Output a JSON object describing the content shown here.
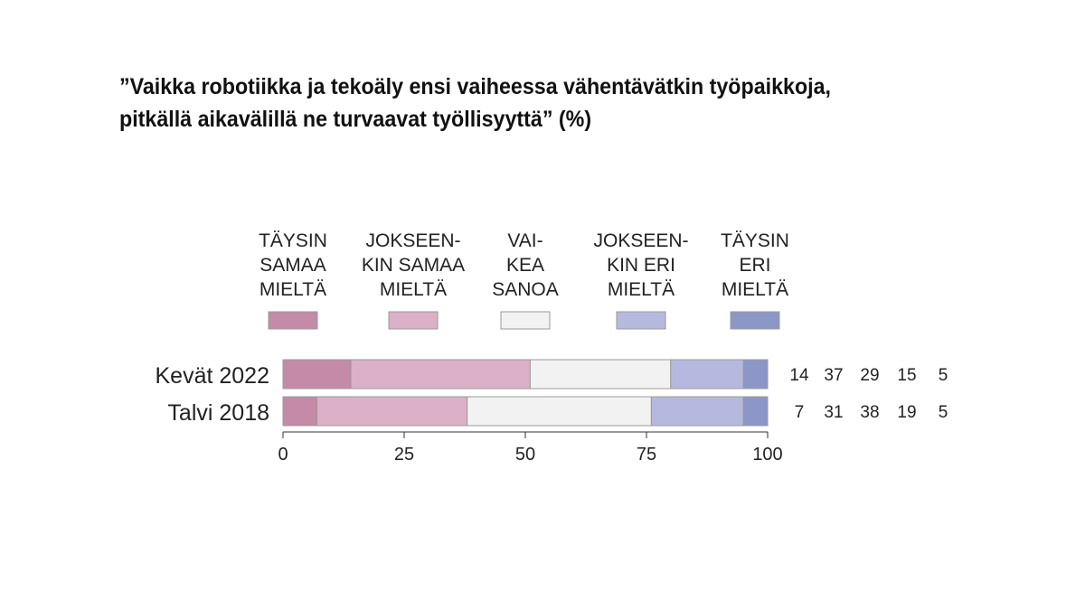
{
  "title_lines": [
    "”Vaikka robotiikka ja tekoäly ensi vaiheessa vähentävätkin työpaikkoja,",
    "pitkällä aikavälillä ne turvaavat työllisyyttä” (%)"
  ],
  "chart_data": {
    "type": "bar",
    "orientation": "horizontal",
    "stacked": true,
    "title": "”Vaikka robotiikka ja tekoäly ensi vaiheessa vähentävätkin työpaikkoja, pitkällä aikavälillä ne turvaavat työllisyyttä” (%)",
    "categories": [
      "Kevät 2022",
      "Talvi 2018"
    ],
    "series": [
      {
        "name": "TÄYSIN SAMAA MIELTÄ",
        "label_lines": [
          "TÄYSIN",
          "SAMAA",
          "MIELTÄ"
        ],
        "color": "#c48aa8",
        "values": [
          14,
          7
        ]
      },
      {
        "name": "JOKSEEN-KIN SAMAA MIELTÄ",
        "label_lines": [
          "JOKSEEN-",
          "KIN SAMAA",
          "MIELTÄ"
        ],
        "color": "#dcb0c6",
        "values": [
          37,
          31
        ]
      },
      {
        "name": "VAI-KEA SANOA",
        "label_lines": [
          "VAI-",
          "KEA",
          "SANOA"
        ],
        "color": "#f2f2f2",
        "values": [
          29,
          38
        ]
      },
      {
        "name": "JOKSEEN-KIN ERI MIELTÄ",
        "label_lines": [
          "JOKSEEN-",
          "KIN ERI",
          "MIELTÄ"
        ],
        "color": "#b6b9df",
        "values": [
          15,
          19
        ]
      },
      {
        "name": "TÄYSIN ERI MIELTÄ",
        "label_lines": [
          "TÄYSIN",
          "ERI",
          "MIELTÄ"
        ],
        "color": "#8d96c8",
        "values": [
          5,
          5
        ]
      }
    ],
    "xlim": [
      0,
      100
    ],
    "xticks": [
      0,
      25,
      50,
      75,
      100
    ],
    "legend_position": "top",
    "value_labels_position": "right",
    "grid": false
  }
}
